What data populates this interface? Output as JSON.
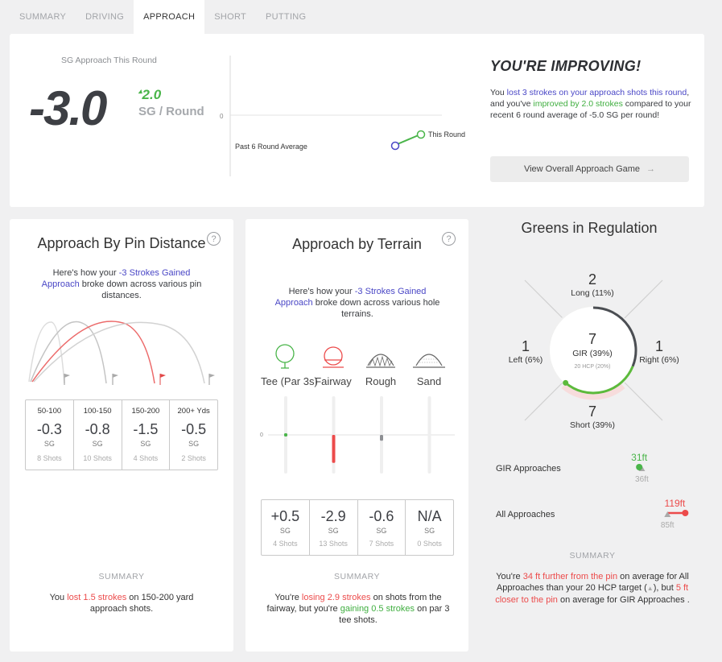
{
  "tabs": [
    {
      "label": "SUMMARY",
      "active": false
    },
    {
      "label": "DRIVING",
      "active": false
    },
    {
      "label": "APPROACH",
      "active": true
    },
    {
      "label": "SHORT",
      "active": false
    },
    {
      "label": "PUTTING",
      "active": false
    }
  ],
  "round": {
    "label": "SG Approach This Round",
    "value": "-3.0",
    "delta": "2.0",
    "delta_arrow": "▴",
    "unit": "SG / Round",
    "chart": {
      "zero_label": "0",
      "avg_label": "Past 6 Round Average",
      "round_label": "This Round",
      "avg_value": -5.0,
      "round_value": -3.0
    },
    "headline": "YOU'RE IMPROVING!",
    "text": {
      "p1": "You ",
      "p2": "lost 3 strokes on your approach shots this round",
      "p3": ", and you've ",
      "p4": "improved by 2.0 strokes",
      "p5": " compared to your recent 6 round average of -5.0 SG per round!"
    },
    "button": "View Overall Approach Game",
    "button_icon": "→"
  },
  "pin_distance": {
    "title": "Approach By Pin Distance",
    "help": "?",
    "desc": {
      "pre": "Here's how your ",
      "link": "-3 Strokes Gained Approach",
      "post": " broke down across various pin distances."
    },
    "columns": [
      {
        "range": "50-100",
        "value": "-0.3",
        "sg": "SG",
        "shots": "8 Shots",
        "highlight": false
      },
      {
        "range": "100-150",
        "value": "-0.8",
        "sg": "SG",
        "shots": "10 Shots",
        "highlight": false
      },
      {
        "range": "150-200",
        "value": "-1.5",
        "sg": "SG",
        "shots": "4 Shots",
        "highlight": true
      },
      {
        "range": "200+ Yds",
        "value": "-0.5",
        "sg": "SG",
        "shots": "2 Shots",
        "highlight": false
      }
    ],
    "summary_heading": "SUMMARY",
    "summary": {
      "pre": "You ",
      "red": "lost 1.5 strokes",
      "post": " on 150-200 yard approach shots."
    }
  },
  "terrain": {
    "title": "Approach by Terrain",
    "help": "?",
    "desc": {
      "pre": "Here's how your ",
      "link": "-3 Strokes Gained Approach",
      "post": " broke down across various hole terrains."
    },
    "zero_label": "0",
    "columns": [
      {
        "label": "Tee (Par 3s)",
        "value": "+0.5",
        "sg": "SG",
        "shots": "4 Shots",
        "color": "green",
        "num": 0.5,
        "icon": "tee-icon"
      },
      {
        "label": "Fairway",
        "value": "-2.9",
        "sg": "SG",
        "shots": "13 Shots",
        "color": "red",
        "num": -2.9,
        "icon": "fairway-icon"
      },
      {
        "label": "Rough",
        "value": "-0.6",
        "sg": "SG",
        "shots": "7 Shots",
        "color": "grey",
        "num": -0.6,
        "icon": "rough-icon"
      },
      {
        "label": "Sand",
        "value": "N/A",
        "sg": "SG",
        "shots": "0 Shots",
        "color": "grey",
        "num": 0,
        "icon": "sand-icon"
      }
    ],
    "summary_heading": "SUMMARY",
    "summary": {
      "p1": "You're ",
      "red": "losing 2.9 strokes",
      "p2": " on shots from the fairway, but you're ",
      "green": "gaining 0.5 strokes",
      "p3": " on par 3 tee shots."
    }
  },
  "gir": {
    "title": "Greens in Regulation",
    "long": {
      "num": "2",
      "label": "Long (11%)"
    },
    "left": {
      "num": "1",
      "label": "Left (6%)"
    },
    "right": {
      "num": "1",
      "label": "Right (6%)"
    },
    "short": {
      "num": "7",
      "label": "Short (39%)"
    },
    "center": {
      "num": "7",
      "label": "GIR (39%)",
      "target": "20 HCP (20%)"
    },
    "gir_pct": 39,
    "target_pct": 20,
    "approaches": [
      {
        "label": "GIR Approaches",
        "you": "31ft",
        "target": "36ft",
        "you_num": 31,
        "target_num": 36
      },
      {
        "label": "All Approaches",
        "you": "119ft",
        "target": "85ft",
        "you_num": 119,
        "target_num": 85
      }
    ],
    "summary_heading": "SUMMARY",
    "summary": {
      "p1": "You're ",
      "red": "34 ft further from the pin",
      "p2": " on average for All Approaches than your 20 HCP target (",
      "p3": "), but ",
      "red2": "5 ft closer to the pin",
      "p4": " on average for GIR Approaches ."
    },
    "triangle": "▲"
  },
  "colors": {
    "green": "#4ab54a",
    "red": "#ec4b4b",
    "blue": "#4a47c6",
    "grey": "#8d8f93",
    "gir_green": "#5cba3c",
    "gir_dark": "#4b4e53"
  }
}
